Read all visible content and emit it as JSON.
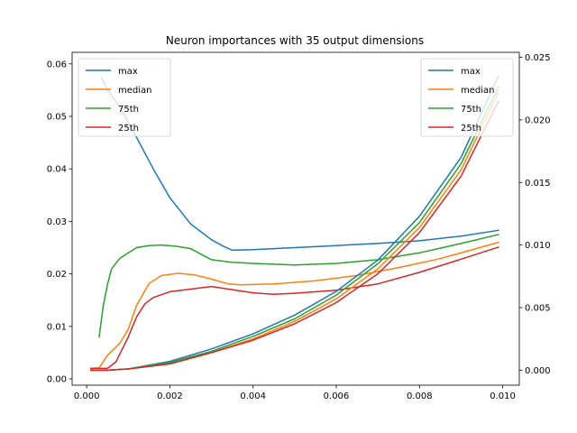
{
  "chart_data": {
    "type": "line",
    "title": "Neuron importances with 35 output dimensions",
    "xlabel": "",
    "ylabel": "",
    "grid": false,
    "colors": {
      "max": "#1f77b4",
      "median": "#ff7f0e",
      "75th": "#2ca02c",
      "25th": "#d62728"
    },
    "axes": {
      "x": {
        "lim": [
          -0.00035,
          0.0104
        ],
        "ticks": [
          0.0,
          0.002,
          0.004,
          0.006,
          0.008,
          0.01
        ],
        "tick_labels": [
          "0.000",
          "0.002",
          "0.004",
          "0.006",
          "0.008",
          "0.010"
        ]
      },
      "y_left": {
        "lim": [
          -0.0012,
          0.0622
        ],
        "ticks": [
          0.0,
          0.01,
          0.02,
          0.03,
          0.04,
          0.05,
          0.06
        ],
        "tick_labels": [
          "0.00",
          "0.01",
          "0.02",
          "0.03",
          "0.04",
          "0.05",
          "0.06"
        ]
      },
      "y_right": {
        "lim": [
          -0.0012,
          0.0254
        ],
        "ticks": [
          0.0,
          0.005,
          0.01,
          0.015,
          0.02,
          0.025
        ],
        "tick_labels": [
          "0.000",
          "0.005",
          "0.010",
          "0.015",
          "0.020",
          "0.025"
        ]
      }
    },
    "legends": [
      {
        "placement": "upper left",
        "axis": "left",
        "entries": [
          "max",
          "median",
          "75th",
          "25th"
        ]
      },
      {
        "placement": "upper right",
        "axis": "right",
        "entries": [
          "max",
          "median",
          "75th",
          "25th"
        ]
      }
    ],
    "series": [
      {
        "name": "max",
        "axis": "left",
        "color_key": "max",
        "points": [
          [
            0.00035,
            0.0575
          ],
          [
            0.0005,
            0.055
          ],
          [
            0.0008,
            0.0518
          ],
          [
            0.0012,
            0.046
          ],
          [
            0.0016,
            0.04
          ],
          [
            0.002,
            0.0345
          ],
          [
            0.0025,
            0.0295
          ],
          [
            0.003,
            0.0265
          ],
          [
            0.0033,
            0.0252
          ],
          [
            0.0035,
            0.0245
          ],
          [
            0.004,
            0.0246
          ],
          [
            0.005,
            0.025
          ],
          [
            0.006,
            0.0254
          ],
          [
            0.007,
            0.0258
          ],
          [
            0.008,
            0.0263
          ],
          [
            0.009,
            0.0272
          ],
          [
            0.0099,
            0.0283
          ]
        ]
      },
      {
        "name": "median",
        "axis": "left",
        "color_key": "median",
        "points": [
          [
            0.0001,
            0.002
          ],
          [
            0.0003,
            0.0021
          ],
          [
            0.0005,
            0.0045
          ],
          [
            0.0008,
            0.0068
          ],
          [
            0.001,
            0.0095
          ],
          [
            0.0012,
            0.014
          ],
          [
            0.0015,
            0.0182
          ],
          [
            0.0018,
            0.0197
          ],
          [
            0.0022,
            0.0201
          ],
          [
            0.0026,
            0.0198
          ],
          [
            0.003,
            0.019
          ],
          [
            0.0034,
            0.0181
          ],
          [
            0.0037,
            0.0179
          ],
          [
            0.0045,
            0.0181
          ],
          [
            0.0055,
            0.0187
          ],
          [
            0.0065,
            0.0197
          ],
          [
            0.0075,
            0.0212
          ],
          [
            0.0085,
            0.0229
          ],
          [
            0.0099,
            0.026
          ]
        ]
      },
      {
        "name": "75th",
        "axis": "left",
        "color_key": "75th",
        "points": [
          [
            0.0003,
            0.008
          ],
          [
            0.0004,
            0.014
          ],
          [
            0.0005,
            0.018
          ],
          [
            0.0006,
            0.021
          ],
          [
            0.0008,
            0.023
          ],
          [
            0.001,
            0.024
          ],
          [
            0.0012,
            0.025
          ],
          [
            0.0015,
            0.0254
          ],
          [
            0.0018,
            0.0255
          ],
          [
            0.0022,
            0.0252
          ],
          [
            0.0025,
            0.0248
          ],
          [
            0.003,
            0.0227
          ],
          [
            0.0035,
            0.0222
          ],
          [
            0.004,
            0.022
          ],
          [
            0.005,
            0.0217
          ],
          [
            0.006,
            0.022
          ],
          [
            0.007,
            0.0227
          ],
          [
            0.008,
            0.024
          ],
          [
            0.009,
            0.0258
          ],
          [
            0.0099,
            0.0275
          ]
        ]
      },
      {
        "name": "25th",
        "axis": "left",
        "color_key": "25th",
        "points": [
          [
            0.0001,
            0.002
          ],
          [
            0.0005,
            0.002
          ],
          [
            0.0007,
            0.0032
          ],
          [
            0.001,
            0.008
          ],
          [
            0.0012,
            0.0118
          ],
          [
            0.0014,
            0.0143
          ],
          [
            0.0016,
            0.0155
          ],
          [
            0.002,
            0.0166
          ],
          [
            0.0025,
            0.0171
          ],
          [
            0.003,
            0.0176
          ],
          [
            0.0035,
            0.017
          ],
          [
            0.004,
            0.0164
          ],
          [
            0.0045,
            0.0161
          ],
          [
            0.005,
            0.0163
          ],
          [
            0.006,
            0.0169
          ],
          [
            0.007,
            0.0181
          ],
          [
            0.008,
            0.0203
          ],
          [
            0.009,
            0.0228
          ],
          [
            0.0099,
            0.0251
          ]
        ]
      },
      {
        "name": "max",
        "axis": "right",
        "color_key": "max",
        "points": [
          [
            0.0001,
            0.0
          ],
          [
            0.0005,
            0.0
          ],
          [
            0.001,
            0.0001
          ],
          [
            0.002,
            0.0007
          ],
          [
            0.003,
            0.0017
          ],
          [
            0.004,
            0.0029
          ],
          [
            0.005,
            0.0044
          ],
          [
            0.006,
            0.0063
          ],
          [
            0.007,
            0.0088
          ],
          [
            0.008,
            0.0123
          ],
          [
            0.009,
            0.017
          ],
          [
            0.0099,
            0.0235
          ]
        ]
      },
      {
        "name": "median",
        "axis": "right",
        "color_key": "median",
        "points": [
          [
            0.0001,
            0.0
          ],
          [
            0.0005,
            0.0
          ],
          [
            0.001,
            0.0001
          ],
          [
            0.002,
            0.0005
          ],
          [
            0.003,
            0.0014
          ],
          [
            0.004,
            0.0025
          ],
          [
            0.005,
            0.0039
          ],
          [
            0.006,
            0.0057
          ],
          [
            0.007,
            0.0081
          ],
          [
            0.008,
            0.0114
          ],
          [
            0.009,
            0.016
          ],
          [
            0.0099,
            0.0222
          ]
        ]
      },
      {
        "name": "75th",
        "axis": "right",
        "color_key": "75th",
        "points": [
          [
            0.0001,
            0.0
          ],
          [
            0.0005,
            0.0
          ],
          [
            0.001,
            0.0001
          ],
          [
            0.002,
            0.0006
          ],
          [
            0.003,
            0.0015
          ],
          [
            0.004,
            0.0027
          ],
          [
            0.005,
            0.0041
          ],
          [
            0.006,
            0.006
          ],
          [
            0.007,
            0.0085
          ],
          [
            0.008,
            0.0118
          ],
          [
            0.009,
            0.0165
          ],
          [
            0.0099,
            0.0226
          ]
        ]
      },
      {
        "name": "25th",
        "axis": "right",
        "color_key": "25th",
        "points": [
          [
            0.0001,
            0.0
          ],
          [
            0.0005,
            0.0
          ],
          [
            0.001,
            0.0001
          ],
          [
            0.002,
            0.0005
          ],
          [
            0.003,
            0.0014
          ],
          [
            0.004,
            0.0024
          ],
          [
            0.005,
            0.0037
          ],
          [
            0.006,
            0.0054
          ],
          [
            0.007,
            0.0077
          ],
          [
            0.008,
            0.011
          ],
          [
            0.009,
            0.0155
          ],
          [
            0.0099,
            0.0215
          ]
        ]
      }
    ]
  }
}
